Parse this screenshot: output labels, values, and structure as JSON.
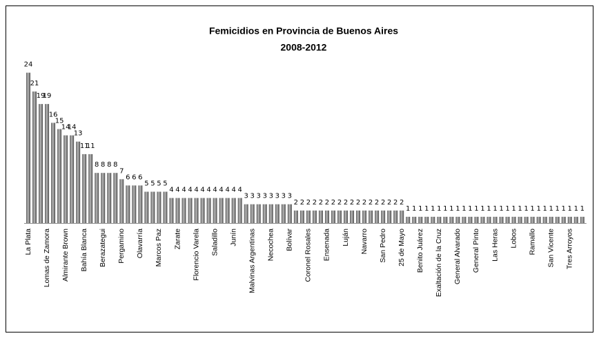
{
  "chart_data": {
    "type": "bar",
    "title": "Femicidios en Provincia de Buenos Aires",
    "subtitle": "2008-2012",
    "color": "#808080",
    "categories": [
      "La Plata",
      null,
      null,
      "Lomas de Zamora",
      null,
      null,
      "Almirante Brown",
      null,
      null,
      "Bahía Blanca",
      null,
      null,
      "Berazategui",
      null,
      null,
      "Pergamino",
      null,
      null,
      "Olavarría",
      null,
      null,
      "Marcos Paz",
      null,
      null,
      "Zarate",
      null,
      null,
      "Florencio Varela",
      null,
      null,
      "Saladillo",
      null,
      null,
      "Junín",
      null,
      null,
      "Malvinas Argentinas",
      null,
      null,
      "Necochea",
      null,
      null,
      "Bolívar",
      null,
      null,
      "Coronel Rosales",
      null,
      null,
      "Ensenada",
      null,
      null,
      "Luján",
      null,
      null,
      "Navarro",
      null,
      null,
      "San Pedro",
      null,
      null,
      "25 de Mayo",
      null,
      null,
      "Benito Juárez",
      null,
      null,
      "Exaltación de la Cruz",
      null,
      null,
      "General Alvarado",
      null,
      null,
      "General Pinto",
      null,
      null,
      "Las Heras",
      null,
      null,
      "Lobos",
      null,
      null,
      "Ramallo",
      null,
      null,
      "San Vicente",
      null,
      null,
      "Tres Arroyos",
      null,
      null
    ],
    "values": [
      24,
      21,
      19,
      19,
      16,
      15,
      14,
      14,
      13,
      11,
      11,
      8,
      8,
      8,
      8,
      7,
      6,
      6,
      6,
      5,
      5,
      5,
      5,
      4,
      4,
      4,
      4,
      4,
      4,
      4,
      4,
      4,
      4,
      4,
      4,
      3,
      3,
      3,
      3,
      3,
      3,
      3,
      3,
      2,
      2,
      2,
      2,
      2,
      2,
      2,
      2,
      2,
      2,
      2,
      2,
      2,
      2,
      2,
      2,
      2,
      2,
      1,
      1,
      1,
      1,
      1,
      1,
      1,
      1,
      1,
      1,
      1,
      1,
      1,
      1,
      1,
      1,
      1,
      1,
      1,
      1,
      1,
      1,
      1,
      1,
      1,
      1,
      1,
      1,
      1
    ]
  }
}
